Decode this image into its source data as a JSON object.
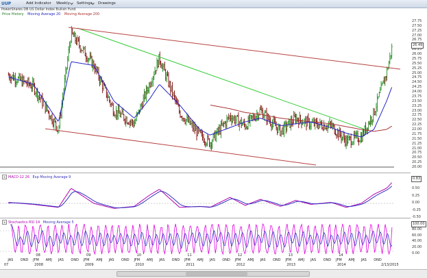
{
  "toolbar": {
    "ticker": "UUP",
    "add_indicator": "Add Indicator",
    "period": "Weekly",
    "settings": "Settings",
    "draw": "Drawings"
  },
  "subtitle": "PowerShares DB US Dollar Index Bullish Fund",
  "legend": {
    "price": "Price History",
    "ma20": "Moving Average 20",
    "ma200": "Moving Average 200"
  },
  "colors": {
    "price": "#1a7a1a",
    "up_bar": "#1a8a1a",
    "down_bar": "#7a0000",
    "ma20": "#2525c8",
    "ma200": "#a83232",
    "macd": "#b000b0",
    "signal": "#3030c0",
    "trend_green": "#33cc33",
    "trend_red": "#b84040"
  },
  "price_axis": [
    "27.75",
    "27.50",
    "27.25",
    "27.00",
    "26.75",
    "26.50",
    "26.25",
    "26.00",
    "25.75",
    "25.50",
    "25.25",
    "25.00",
    "24.75",
    "24.50",
    "24.25",
    "24.00",
    "23.75",
    "23.50",
    "23.25",
    "23.00",
    "22.75",
    "22.50",
    "22.25",
    "22.00",
    "21.75",
    "21.50",
    "21.25",
    "21.00",
    "20.75",
    "20.50",
    "20.25",
    "20.00"
  ],
  "price_current": "26.49",
  "macd": {
    "label": "MACD 12 26",
    "signal_label": "Exp Moving Average 9",
    "axis": [
      "0.75",
      "0.50",
      "0.25",
      "0.00",
      "-0.25",
      "-0.50"
    ],
    "current": "0.83"
  },
  "stoch": {
    "label": "Stochastics RSI 14",
    "signal_label": "Moving Average 5",
    "axis": [
      "80.00",
      "60.00",
      "40.00",
      "20.00",
      "0.00"
    ],
    "current": "100.00"
  },
  "x_months": [
    "JAS",
    "OND",
    "JFM",
    "AMJ",
    "JAS",
    "OND",
    "JFM",
    "AMJ",
    "JAS",
    "OND",
    "JFM",
    "AMJ",
    "JAS",
    "OND",
    "JFM",
    "AMJ",
    "JAS",
    "OND",
    "JFM",
    "AMJ",
    "JAS",
    "OND",
    "JFM",
    "AMJ",
    "JAS",
    "OND",
    "JFM",
    "AMJ",
    "JAS",
    "OND"
  ],
  "x_years": [
    "07",
    "2008",
    "2009",
    "2010",
    "2011",
    "2012",
    "2013",
    "2014"
  ],
  "x_year_ticks": [
    "08",
    "09",
    "10",
    "11",
    "12",
    "13",
    "14"
  ],
  "last_date": "2/13/2015",
  "chart_data": {
    "type": "line",
    "title": "",
    "ylabel": "",
    "ylim": [
      20.0,
      27.75
    ],
    "x": [
      "2007.5",
      "2008.0",
      "2008.5",
      "2008.75",
      "2009.2",
      "2009.6",
      "2010.0",
      "2010.3",
      "2010.5",
      "2010.9",
      "2011.3",
      "2011.5",
      "2011.9",
      "2012.2",
      "2012.5",
      "2012.9",
      "2013.2",
      "2013.5",
      "2013.9",
      "2014.2",
      "2014.5",
      "2014.75",
      "2015.0",
      "2015.12"
    ],
    "series": [
      {
        "name": "Price History",
        "values": [
          24.9,
          24.3,
          22.0,
          27.1,
          25.4,
          23.0,
          22.3,
          24.4,
          25.8,
          22.9,
          21.7,
          21.3,
          22.7,
          22.2,
          23.0,
          21.9,
          22.6,
          22.3,
          22.2,
          21.4,
          21.6,
          22.9,
          25.0,
          26.49
        ]
      },
      {
        "name": "Moving Average 20",
        "values": [
          24.8,
          24.4,
          22.4,
          25.6,
          25.4,
          23.5,
          22.6,
          23.6,
          24.4,
          23.3,
          22.0,
          21.7,
          22.1,
          22.4,
          22.6,
          22.2,
          22.3,
          22.4,
          22.1,
          21.8,
          21.6,
          22.0,
          23.5,
          24.35
        ]
      },
      {
        "name": "Moving Average 200",
        "values": [
          null,
          null,
          null,
          null,
          null,
          null,
          null,
          null,
          null,
          null,
          null,
          23.3,
          23.1,
          22.9,
          22.8,
          22.6,
          22.5,
          22.4,
          22.3,
          22.15,
          22.0,
          21.9,
          22.0,
          22.2
        ]
      }
    ]
  }
}
